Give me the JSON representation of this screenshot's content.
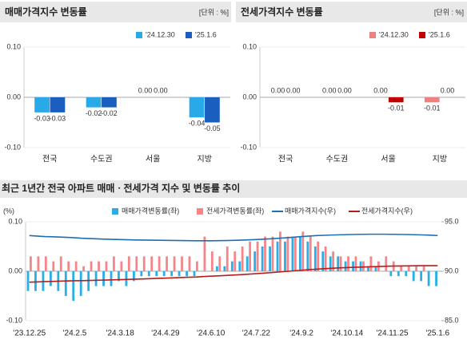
{
  "chart_data": [
    {
      "type": "bar",
      "title": "매매가격지수 변동률",
      "unit": "[단위 : %]",
      "categories": [
        "전국",
        "수도권",
        "서울",
        "지방"
      ],
      "ylim": [
        -0.1,
        0.1
      ],
      "yticks": [
        {
          "value": -0.1,
          "label": "-0.10"
        },
        {
          "value": 0,
          "label": "0.00"
        },
        {
          "value": 0.1,
          "label": "0.10"
        }
      ],
      "series": [
        {
          "name": "'24.12.30",
          "color": "#29a9e8",
          "values": [
            -0.03,
            -0.02,
            0,
            -0.04
          ],
          "value_labels": [
            "-0.03",
            "-0.02",
            "0.00",
            "-0.04"
          ]
        },
        {
          "name": "'25.1.6",
          "color": "#1a5fbf",
          "values": [
            -0.03,
            -0.02,
            0,
            -0.05
          ],
          "value_labels": [
            "-0.03",
            "-0.02",
            "0.00",
            "-0.05"
          ]
        }
      ]
    },
    {
      "type": "bar",
      "title": "전세가격지수 변동률",
      "unit": "[단위 : %]",
      "categories": [
        "전국",
        "수도권",
        "서울",
        "지방"
      ],
      "ylim": [
        -0.1,
        0.1
      ],
      "yticks": [
        {
          "value": -0.1,
          "label": "-0.10"
        },
        {
          "value": 0,
          "label": "0.00"
        },
        {
          "value": 0.1,
          "label": "0.10"
        }
      ],
      "series": [
        {
          "name": "'24.12.30",
          "color": "#f08080",
          "values": [
            0,
            0,
            0,
            -0.01
          ],
          "value_labels": [
            "0.00",
            "0.00",
            "0.00",
            "-0.01"
          ]
        },
        {
          "name": "'25.1.6",
          "color": "#c00000",
          "values": [
            0,
            0,
            -0.01,
            0
          ],
          "value_labels": [
            "0.00",
            "0.00",
            "-0.01",
            "0.00"
          ]
        }
      ]
    },
    {
      "type": "combo",
      "title": "최근 1년간 전국 아파트 매매ㆍ전세가격 지수 및 변동률 추이",
      "ylabel": "(%)",
      "categories": [
        "'23.12.25",
        null,
        null,
        null,
        null,
        null,
        "'24.2.5",
        null,
        null,
        null,
        null,
        null,
        "'24.3.18",
        null,
        null,
        null,
        null,
        null,
        "'24.4.29",
        null,
        null,
        null,
        null,
        null,
        "'24.6.10",
        null,
        null,
        null,
        null,
        null,
        "'24.7.22",
        null,
        null,
        null,
        null,
        null,
        "'24.9.2",
        null,
        null,
        null,
        null,
        null,
        "'24.10.14",
        null,
        null,
        null,
        null,
        null,
        "'24.11.25",
        null,
        null,
        null,
        null,
        null,
        "'25.1.6"
      ],
      "ylim": [
        -0.1,
        0.1
      ],
      "yticks": [
        {
          "value": -0.1,
          "label": "-0.10"
        },
        {
          "value": 0,
          "label": "0.00"
        },
        {
          "value": 0.1,
          "label": "0.10"
        }
      ],
      "y2lim": [
        85,
        95
      ],
      "y2ticks": [
        {
          "value": 85,
          "label": "85.0"
        },
        {
          "value": 90,
          "label": "90.0"
        },
        {
          "value": 95,
          "label": "95.0"
        }
      ],
      "series": [
        {
          "name": "매매가격변동률(좌)",
          "type": "bar",
          "color": "#29aee6",
          "values": [
            -0.04,
            -0.04,
            -0.04,
            -0.03,
            -0.04,
            -0.05,
            -0.06,
            -0.05,
            -0.04,
            -0.03,
            -0.03,
            -0.03,
            -0.02,
            -0.03,
            -0.02,
            -0.01,
            -0.01,
            -0.01,
            -0.01,
            -0.01,
            -0.01,
            -0.01,
            -0.01,
            0,
            0,
            0.01,
            0.01,
            0.02,
            0.02,
            0.03,
            0.04,
            0.05,
            0.05,
            0.06,
            0.06,
            0.07,
            0.07,
            0.06,
            0.05,
            0.04,
            0.03,
            0.03,
            0.02,
            0.02,
            0.02,
            0.01,
            0.01,
            0,
            -0.01,
            -0.01,
            -0.01,
            -0.02,
            -0.02,
            -0.03,
            -0.03
          ]
        },
        {
          "name": "전세가격변동률(좌)",
          "type": "bar",
          "color": "#f4868a",
          "values": [
            0.03,
            0.03,
            0.03,
            0.02,
            0.03,
            0.02,
            0.02,
            0.01,
            0.02,
            0.02,
            0.02,
            0.03,
            0.02,
            0.03,
            0.03,
            0.03,
            0.03,
            0.03,
            0.03,
            0.03,
            0.03,
            0.03,
            0.02,
            0.07,
            0.04,
            0.03,
            0.05,
            0.04,
            0.05,
            0.06,
            0.06,
            0.07,
            0.07,
            0.08,
            0.07,
            0.07,
            0.08,
            0.07,
            0.06,
            0.05,
            0.04,
            0.03,
            0.03,
            0.03,
            0.02,
            0.03,
            0.02,
            0.03,
            0.02,
            0.01,
            0.01,
            0.01,
            0.01,
            0,
            0
          ]
        },
        {
          "name": "매매가격지수(우)",
          "type": "line",
          "axis": "y2",
          "color": "#1a6fb5",
          "values": [
            93.6,
            93.55,
            93.5,
            93.48,
            93.45,
            93.42,
            93.38,
            93.33,
            93.3,
            93.27,
            93.24,
            93.22,
            93.2,
            93.18,
            93.16,
            93.15,
            93.14,
            93.13,
            93.12,
            93.11,
            93.1,
            93.09,
            93.08,
            93.08,
            93.08,
            93.09,
            93.1,
            93.12,
            93.14,
            93.17,
            93.2,
            93.24,
            93.28,
            93.33,
            93.38,
            93.44,
            93.5,
            93.55,
            93.6,
            93.63,
            93.66,
            93.68,
            93.7,
            93.72,
            93.73,
            93.74,
            93.74,
            93.74,
            93.73,
            93.72,
            93.71,
            93.69,
            93.67,
            93.64,
            93.61
          ]
        },
        {
          "name": "전세가격지수(우)",
          "type": "line",
          "axis": "y2",
          "color": "#b71c1c",
          "values": [
            88.9,
            88.92,
            88.95,
            88.97,
            89.0,
            89.02,
            89.04,
            89.05,
            89.07,
            89.09,
            89.11,
            89.13,
            89.15,
            89.17,
            89.2,
            89.22,
            89.25,
            89.28,
            89.3,
            89.33,
            89.36,
            89.39,
            89.41,
            89.46,
            89.5,
            89.53,
            89.57,
            89.61,
            89.65,
            89.7,
            89.75,
            89.8,
            89.86,
            89.92,
            89.98,
            90.04,
            90.1,
            90.16,
            90.21,
            90.26,
            90.3,
            90.34,
            90.37,
            90.4,
            90.42,
            90.45,
            90.47,
            90.5,
            90.52,
            90.53,
            90.54,
            90.55,
            90.56,
            90.56,
            90.56
          ]
        }
      ]
    }
  ]
}
